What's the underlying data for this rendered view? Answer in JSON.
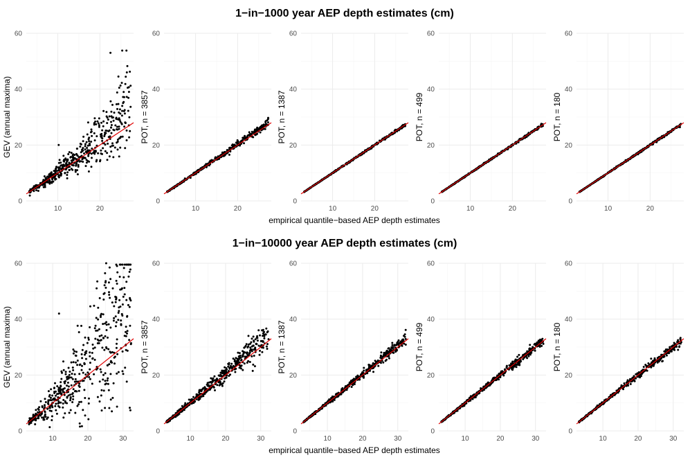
{
  "figure": {
    "x_axis_label": "empirical quantile−based AEP depth estimates"
  },
  "chart_data": [
    {
      "type": "scatter",
      "title": "1−in−1000 year AEP depth estimates (cm)",
      "xlabel": "empirical quantile−based AEP depth estimates",
      "xlim": [
        2.5,
        28
      ],
      "ylim": [
        0,
        60
      ],
      "x_ticks": [
        10,
        20
      ],
      "y_ticks": [
        0,
        20,
        40,
        60
      ],
      "reference_line": "y = x",
      "panels": [
        {
          "ylabel": "GEV (annual maxima)",
          "n_points": 500,
          "spread": 0.16,
          "skew": 0.2,
          "upper_outliers": [
            [
              22.5,
              53
            ],
            [
              25.3,
              53.8
            ],
            [
              26.3,
              53.8
            ],
            [
              26.4,
              46
            ],
            [
              24.4,
              44.5
            ],
            [
              24.6,
              40.5
            ],
            [
              26.6,
              40.5
            ],
            [
              24.1,
              38.8
            ],
            [
              25.5,
              35
            ],
            [
              25.9,
              32.5
            ],
            [
              10.2,
              20
            ]
          ]
        },
        {
          "ylabel": "POT, n = 3857",
          "n_points": 480,
          "spread": 0.035,
          "skew": 0.03,
          "upper_outliers": []
        },
        {
          "ylabel": "POT, n = 1387",
          "n_points": 480,
          "spread": 0.015,
          "skew": 0.0,
          "upper_outliers": []
        },
        {
          "ylabel": "POT, n = 499",
          "n_points": 480,
          "spread": 0.015,
          "skew": 0.0,
          "upper_outliers": []
        },
        {
          "ylabel": "POT, n = 180",
          "n_points": 480,
          "spread": 0.015,
          "skew": 0.0,
          "upper_outliers": []
        }
      ]
    },
    {
      "type": "scatter",
      "title": "1−in−10000 year AEP depth estimates (cm)",
      "xlabel": "empirical quantile−based AEP depth estimates",
      "xlim": [
        2.5,
        33
      ],
      "ylim": [
        0,
        60
      ],
      "x_ticks": [
        10,
        20,
        30
      ],
      "y_ticks": [
        0,
        20,
        40,
        60
      ],
      "reference_line": "y = x",
      "panels": [
        {
          "ylabel": "GEV (annual maxima)",
          "n_points": 500,
          "spread": 0.25,
          "skew": 0.3,
          "upper_outliers": [
            [
              25.2,
              60
            ],
            [
              26.2,
              58.5
            ],
            [
              28.3,
              59
            ],
            [
              30.2,
              55
            ],
            [
              30.1,
              48
            ],
            [
              11.8,
              42
            ],
            [
              22.5,
              51
            ],
            [
              27.1,
              51
            ],
            [
              24.5,
              47
            ]
          ]
        },
        {
          "ylabel": "POT, n = 3857",
          "n_points": 500,
          "spread": 0.08,
          "skew": 0.06,
          "upper_outliers": [
            [
              26.5,
              34
            ],
            [
              27.5,
              33
            ]
          ]
        },
        {
          "ylabel": "POT, n = 1387",
          "n_points": 500,
          "spread": 0.05,
          "skew": 0.02,
          "upper_outliers": []
        },
        {
          "ylabel": "POT, n = 499",
          "n_points": 500,
          "spread": 0.045,
          "skew": 0.0,
          "upper_outliers": []
        },
        {
          "ylabel": "POT, n = 180",
          "n_points": 500,
          "spread": 0.045,
          "skew": 0.0,
          "upper_outliers": []
        }
      ]
    }
  ]
}
